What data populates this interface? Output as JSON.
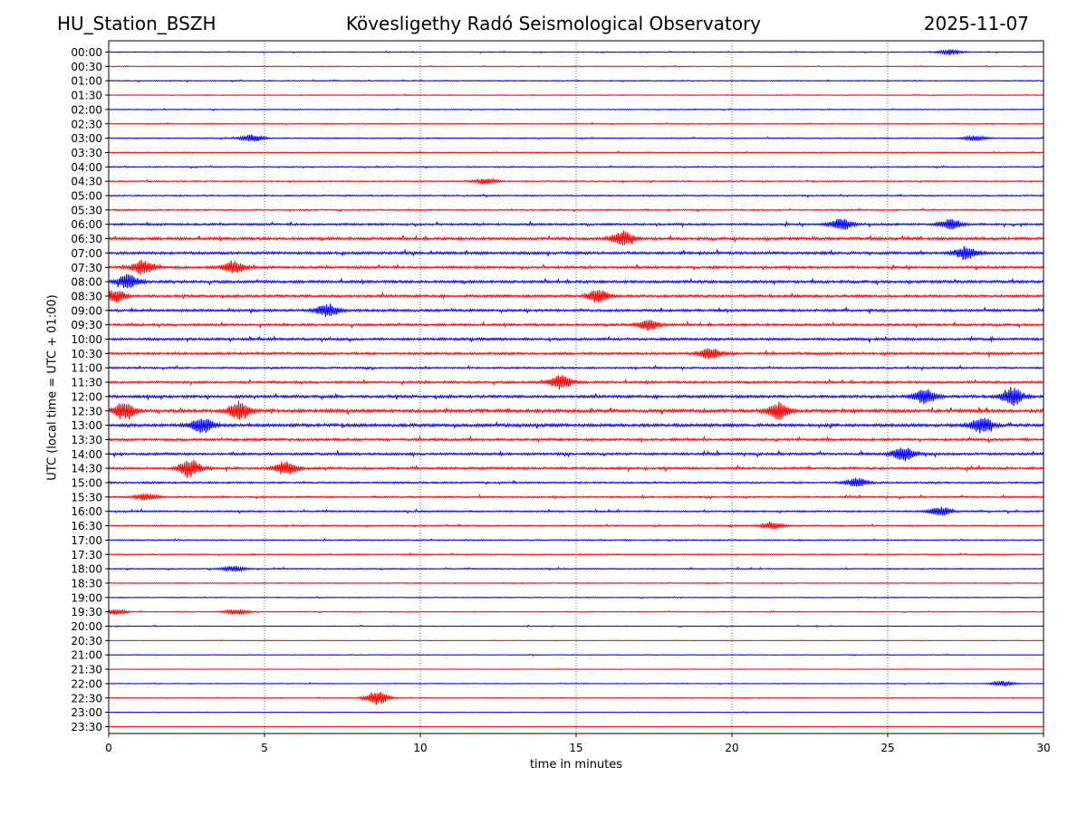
{
  "header": {
    "station": "HU_Station_BSZH",
    "observatory": "Kövesligethy Radó Seismological Observatory",
    "date": "2025-11-07"
  },
  "chart_data": {
    "type": "seismogram",
    "title": "Kövesligethy Radó Seismological Observatory",
    "xlabel": "time in minutes",
    "ylabel": "UTC (local time = UTC + 01:00)",
    "xlim": [
      0,
      30
    ],
    "x_ticks": [
      0,
      5,
      10,
      15,
      20,
      25,
      30
    ],
    "vertical_gridlines_minutes": [
      5,
      10,
      15,
      20,
      25
    ],
    "rows": [
      "00:00",
      "00:30",
      "01:00",
      "01:30",
      "02:00",
      "02:30",
      "03:00",
      "03:30",
      "04:00",
      "04:30",
      "05:00",
      "05:30",
      "06:00",
      "06:30",
      "07:00",
      "07:30",
      "08:00",
      "08:30",
      "09:00",
      "09:30",
      "10:00",
      "10:30",
      "11:00",
      "11:30",
      "12:00",
      "12:30",
      "13:00",
      "13:30",
      "14:00",
      "14:30",
      "15:00",
      "15:30",
      "16:00",
      "16:30",
      "17:00",
      "17:30",
      "18:00",
      "18:30",
      "19:00",
      "19:30",
      "20:00",
      "20:30",
      "21:00",
      "21:30",
      "22:00",
      "22:30",
      "23:00",
      "23:30"
    ],
    "trace_colors": [
      "#0000ff",
      "#ff0000"
    ],
    "noise_amplitude": [
      0.3,
      0.25,
      0.35,
      0.25,
      0.3,
      0.3,
      0.35,
      0.35,
      0.35,
      0.4,
      0.45,
      0.45,
      0.7,
      0.95,
      0.9,
      0.85,
      0.9,
      0.85,
      0.85,
      0.8,
      0.85,
      0.8,
      0.6,
      0.75,
      0.9,
      1.1,
      1.05,
      0.85,
      0.8,
      0.8,
      0.6,
      0.55,
      0.55,
      0.45,
      0.4,
      0.35,
      0.4,
      0.3,
      0.3,
      0.3,
      0.25,
      0.2,
      0.25,
      0.2,
      0.25,
      0.25,
      0.2,
      0.2
    ],
    "events": [
      {
        "row": "00:00",
        "minute": 27.0,
        "amp": 3
      },
      {
        "row": "03:00",
        "minute": 4.6,
        "amp": 4
      },
      {
        "row": "03:00",
        "minute": 27.8,
        "amp": 3
      },
      {
        "row": "04:30",
        "minute": 12.1,
        "amp": 3
      },
      {
        "row": "06:00",
        "minute": 23.5,
        "amp": 7
      },
      {
        "row": "06:00",
        "minute": 27.0,
        "amp": 6
      },
      {
        "row": "06:30",
        "minute": 16.5,
        "amp": 8
      },
      {
        "row": "07:00",
        "minute": 27.5,
        "amp": 7
      },
      {
        "row": "07:30",
        "minute": 1.1,
        "amp": 8
      },
      {
        "row": "07:30",
        "minute": 4.0,
        "amp": 7
      },
      {
        "row": "08:00",
        "minute": 0.6,
        "amp": 8
      },
      {
        "row": "08:30",
        "minute": 0.2,
        "amp": 7
      },
      {
        "row": "08:30",
        "minute": 15.7,
        "amp": 7
      },
      {
        "row": "09:00",
        "minute": 7.0,
        "amp": 7
      },
      {
        "row": "09:30",
        "minute": 17.3,
        "amp": 6
      },
      {
        "row": "10:30",
        "minute": 19.3,
        "amp": 6
      },
      {
        "row": "11:30",
        "minute": 14.5,
        "amp": 9
      },
      {
        "row": "12:00",
        "minute": 26.2,
        "amp": 9
      },
      {
        "row": "12:00",
        "minute": 29.0,
        "amp": 10
      },
      {
        "row": "12:30",
        "minute": 0.5,
        "amp": 10
      },
      {
        "row": "12:30",
        "minute": 4.2,
        "amp": 10
      },
      {
        "row": "12:30",
        "minute": 21.5,
        "amp": 9
      },
      {
        "row": "13:00",
        "minute": 3.0,
        "amp": 9
      },
      {
        "row": "13:00",
        "minute": 28.0,
        "amp": 9
      },
      {
        "row": "14:00",
        "minute": 25.5,
        "amp": 8
      },
      {
        "row": "14:30",
        "minute": 2.6,
        "amp": 10
      },
      {
        "row": "14:30",
        "minute": 5.7,
        "amp": 8
      },
      {
        "row": "15:00",
        "minute": 24.0,
        "amp": 5
      },
      {
        "row": "15:30",
        "minute": 1.2,
        "amp": 4
      },
      {
        "row": "16:00",
        "minute": 26.7,
        "amp": 5
      },
      {
        "row": "16:30",
        "minute": 21.3,
        "amp": 4
      },
      {
        "row": "18:00",
        "minute": 4.0,
        "amp": 3
      },
      {
        "row": "19:30",
        "minute": 0.2,
        "amp": 3
      },
      {
        "row": "19:30",
        "minute": 4.1,
        "amp": 3
      },
      {
        "row": "22:00",
        "minute": 28.7,
        "amp": 3
      },
      {
        "row": "22:30",
        "minute": 8.6,
        "amp": 8
      }
    ]
  }
}
